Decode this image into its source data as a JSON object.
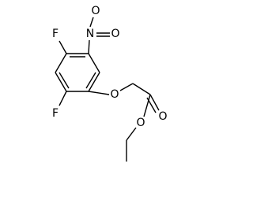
{
  "atoms": [
    {
      "label": "F"
    },
    {
      "label": "F"
    },
    {
      "label": "N"
    },
    {
      "label": "O"
    },
    {
      "label": "O"
    },
    {
      "label": "O"
    },
    {
      "label": "O"
    },
    {
      "label": "O"
    }
  ]
}
